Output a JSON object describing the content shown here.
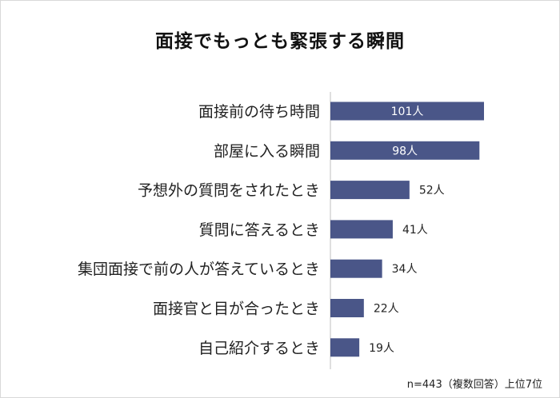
{
  "title": "面接でもっとも緊張する瞬間",
  "note": "n=443（複数回答）上位7位",
  "colors": {
    "bar": "#4a5688",
    "axis": "#bfbfbf",
    "label_inside": "#ffffff",
    "label_outside": "#222222"
  },
  "chart_data": {
    "type": "bar",
    "orientation": "horizontal",
    "title": "面接でもっとも緊張する瞬間",
    "categories": [
      "面接前の待ち時間",
      "部屋に入る瞬間",
      "予想外の質問をされたとき",
      "質問に答えるとき",
      "集団面接で前の人が答えているとき",
      "面接官と目が合ったとき",
      "自己紹介するとき"
    ],
    "values": [
      101,
      98,
      52,
      41,
      34,
      22,
      19
    ],
    "value_labels": [
      "101人",
      "98人",
      "52人",
      "41人",
      "34人",
      "22人",
      "19人"
    ],
    "unit": "人",
    "xlim": [
      0,
      101
    ],
    "grid": false
  }
}
